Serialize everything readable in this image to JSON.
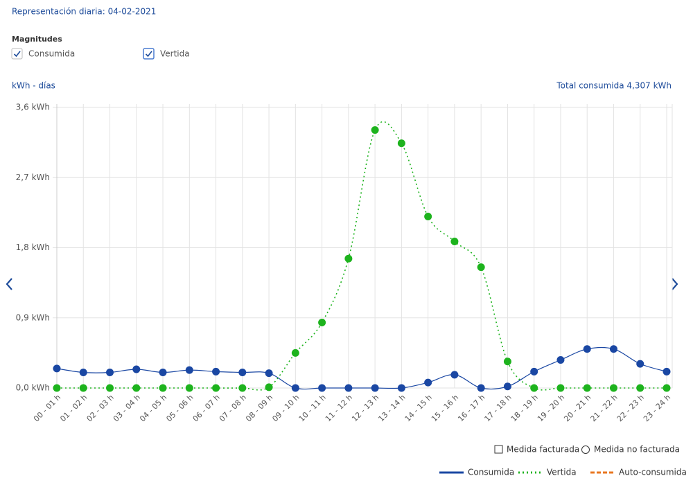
{
  "header": {
    "title": "Representación diaria: 04-02-2021"
  },
  "magnitudes": {
    "label": "Magnitudes",
    "options": [
      {
        "label": "Consumida",
        "checked": true
      },
      {
        "label": "Vertida",
        "checked": true
      }
    ]
  },
  "chart_data": {
    "type": "line",
    "y_label": "kWh - días",
    "total": "Total consumida  4,307 kWh",
    "categories": [
      "00 - 01 h",
      "01 - 02 h",
      "02 - 03 h",
      "03 - 04 h",
      "04 - 05 h",
      "05 - 06 h",
      "06 - 07 h",
      "07 - 08 h",
      "08 - 09 h",
      "09 - 10 h",
      "10 - 11 h",
      "11 - 12 h",
      "12 - 13 h",
      "13 - 14 h",
      "14 - 15 h",
      "15 - 16 h",
      "16 - 17 h",
      "17 - 18 h",
      "18 - 19 h",
      "19 - 20 h",
      "20 - 21 h",
      "21 - 22 h",
      "22 - 23 h",
      "23 - 24 h"
    ],
    "series": [
      {
        "name": "Consumida",
        "color": "#1a47a3",
        "line": "solid",
        "values": [
          0.25,
          0.2,
          0.2,
          0.24,
          0.2,
          0.23,
          0.21,
          0.2,
          0.19,
          0,
          0,
          0,
          0,
          0,
          0.07,
          0.17,
          0,
          0.02,
          0.21,
          0.36,
          0.5,
          0.5,
          0.31,
          0.21
        ]
      },
      {
        "name": "Vertida",
        "color": "#1db31d",
        "line": "dotted",
        "values": [
          0,
          0,
          0,
          0,
          0,
          0,
          0,
          0,
          0.01,
          0.45,
          0.84,
          1.66,
          3.31,
          3.14,
          2.2,
          1.88,
          1.55,
          0.34,
          0,
          0,
          0,
          0,
          0,
          0
        ]
      }
    ],
    "legend_extra": [
      {
        "name": "Auto-consumida",
        "color": "#e87722",
        "line": "dashed"
      }
    ],
    "ylim": [
      0,
      3.6
    ],
    "yticks": [
      {
        "value": 0,
        "label": "0,0 kWh"
      },
      {
        "value": 0.9,
        "label": "0,9 kWh"
      },
      {
        "value": 1.8,
        "label": "1,8 kWh"
      },
      {
        "value": 2.7,
        "label": "2,7 kWh"
      },
      {
        "value": 3.6,
        "label": "3,6 kWh"
      }
    ],
    "grid": true
  },
  "measure_legend": [
    "Medida facturada",
    "Medida no facturada"
  ]
}
